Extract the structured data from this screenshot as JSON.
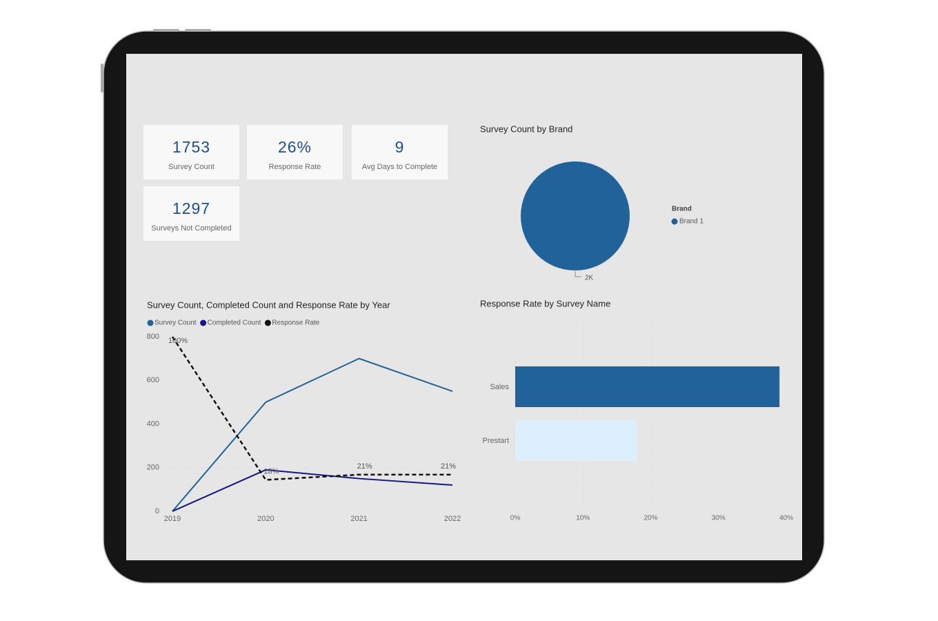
{
  "cards": [
    {
      "value": "1753",
      "label": "Survey Count"
    },
    {
      "value": "26%",
      "label": "Response Rate"
    },
    {
      "value": "9",
      "label": "Avg Days to Complete"
    },
    {
      "value": "1297",
      "label": "Surveys Not Completed"
    }
  ],
  "chart_data": [
    {
      "type": "pie",
      "title": "Survey Count by Brand",
      "legend_title": "Brand",
      "categories": [
        "Brand 1"
      ],
      "values": [
        1753
      ],
      "value_labels": [
        "2K"
      ],
      "colors": [
        "#21629a"
      ]
    },
    {
      "type": "line",
      "title": "Survey Count, Completed Count and Response Rate by Year",
      "categories": [
        "2019",
        "2020",
        "2021",
        "2022"
      ],
      "series": [
        {
          "name": "Survey Count",
          "color": "#21629a",
          "values": [
            0,
            500,
            700,
            550
          ]
        },
        {
          "name": "Completed Count",
          "color": "#14148a",
          "values": [
            0,
            190,
            150,
            120
          ]
        },
        {
          "name": "Response Rate",
          "color": "#111111",
          "axis": "y2",
          "line_style": "dashed",
          "values": [
            100,
            18,
            21,
            21
          ],
          "value_labels": [
            "100%",
            "18%",
            "21%",
            "21%"
          ]
        }
      ],
      "ylim": [
        0,
        800
      ],
      "yticks": [
        0,
        200,
        400,
        600,
        800
      ],
      "y2lim": [
        0,
        100
      ],
      "grid": true
    },
    {
      "type": "hbar",
      "title": "Response Rate by Survey Name",
      "categories": [
        "Sales",
        "Prestart"
      ],
      "values": [
        39,
        18
      ],
      "colors": [
        "#21629a",
        "#ddeefc"
      ],
      "xlim": [
        0,
        40
      ],
      "xticks": [
        {
          "value": 0,
          "label": "0%"
        },
        {
          "value": 10,
          "label": "10%"
        },
        {
          "value": 20,
          "label": "20%"
        },
        {
          "value": 30,
          "label": "30%"
        },
        {
          "value": 40,
          "label": "40%"
        }
      ],
      "grid": true
    }
  ]
}
